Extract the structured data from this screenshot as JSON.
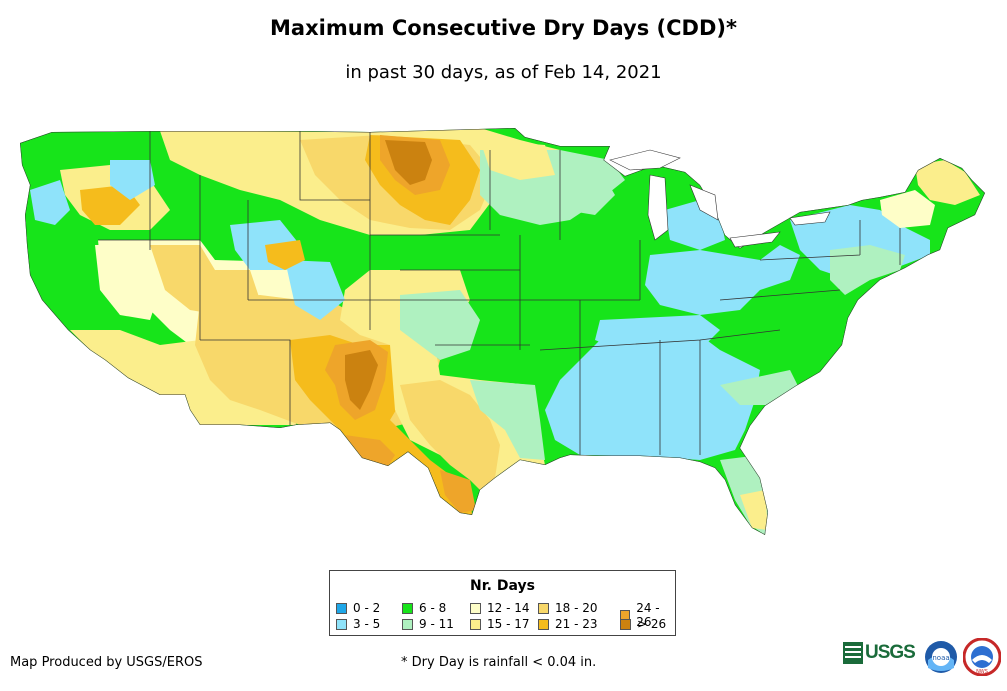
{
  "title": "Maximum Consecutive Dry Days (CDD)*",
  "subtitle": "in past 30 days, as of Feb 14, 2021",
  "legend": {
    "title": "Nr. Days",
    "items": [
      {
        "label": "0 - 2",
        "color": "#1fa7e8"
      },
      {
        "label": "3 - 5",
        "color": "#8fe3fa"
      },
      {
        "label": "6 - 8",
        "color": "#17e41a"
      },
      {
        "label": "9 - 11",
        "color": "#aff1c0"
      },
      {
        "label": "12 - 14",
        "color": "#fefec8"
      },
      {
        "label": "15 - 17",
        "color": "#fbee8c"
      },
      {
        "label": "18 - 20",
        "color": "#f8d86a"
      },
      {
        "label": "21 - 23",
        "color": "#f5bc1c"
      },
      {
        "label": "24 - 26",
        "color": "#eea52a"
      },
      {
        "label": "> 26",
        "color": "#cb8210"
      }
    ]
  },
  "credit": "Map Produced by USGS/EROS",
  "footnote": "* Dry Day is rainfall < 0.04 in.",
  "logos": {
    "usgs": "USGS",
    "noaa": "noaa",
    "nws": "NWS"
  }
}
